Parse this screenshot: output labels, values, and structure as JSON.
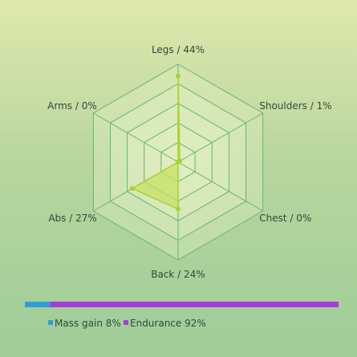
{
  "chart_data": [
    {
      "type": "radar",
      "axes": [
        "Legs",
        "Shoulders",
        "Chest",
        "Back",
        "Abs",
        "Arms"
      ],
      "values": [
        44,
        1,
        0,
        24,
        27,
        0
      ],
      "value_unit": "%",
      "rlim": [
        0,
        50
      ],
      "grid_rings": 5,
      "labels": [
        "Legs / 44%",
        "Shoulders / 1%",
        "Chest / 0%",
        "Back / 24%",
        "Abs / 27%",
        "Arms / 0%"
      ]
    },
    {
      "type": "bar",
      "orientation": "horizontal",
      "stacked": true,
      "series": [
        {
          "name": "Mass gain",
          "value": 8
        },
        {
          "name": "Endurance",
          "value": 92
        }
      ],
      "legend_labels": [
        "Mass gain 8%",
        "Endurance 92%"
      ],
      "legend_placement": "bottom"
    }
  ],
  "colors": {
    "radar_fill": "#c8e066",
    "radar_line": "#a9d22a",
    "grid_line": "#63b86b",
    "grid_fill": "#e4f0c6",
    "mass_gain": "#2f9ed8",
    "endurance": "#a33fd8"
  }
}
